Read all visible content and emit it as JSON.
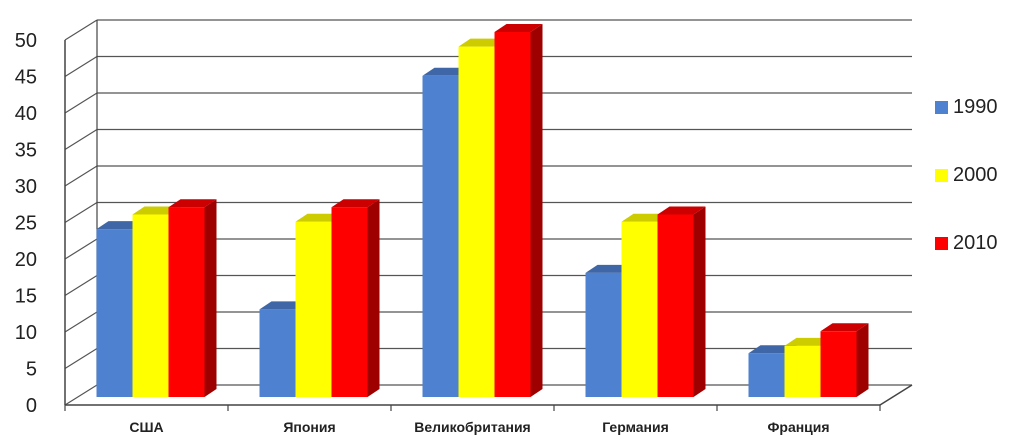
{
  "chart_data": {
    "type": "bar",
    "three_d": true,
    "categories": [
      "США",
      "Япония",
      "Великобритания",
      "Германия",
      "Франция"
    ],
    "series": [
      {
        "name": "1990",
        "values": [
          23,
          12,
          44,
          17,
          6
        ],
        "color": "#4f81d1"
      },
      {
        "name": "2000",
        "values": [
          25,
          24,
          48,
          24,
          7
        ],
        "color": "#ffff00"
      },
      {
        "name": "2010",
        "values": [
          26,
          26,
          50,
          25,
          9
        ],
        "color": "#ff0000"
      }
    ],
    "ylim": [
      0,
      50
    ],
    "yticks": [
      0,
      5,
      10,
      15,
      20,
      25,
      30,
      35,
      40,
      45,
      50
    ],
    "title": "",
    "xlabel": "",
    "ylabel": "",
    "grid": true,
    "legend_position": "right"
  }
}
